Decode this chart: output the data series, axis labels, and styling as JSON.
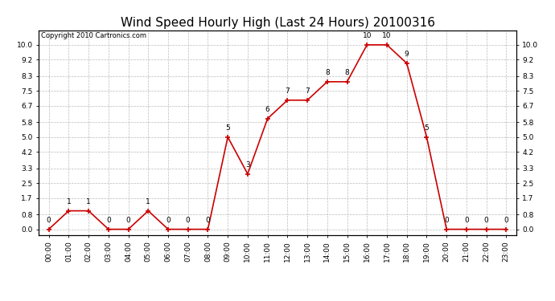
{
  "title": "Wind Speed Hourly High (Last 24 Hours) 20100316",
  "copyright": "Copyright 2010 Cartronics.com",
  "hours": [
    "00:00",
    "01:00",
    "02:00",
    "03:00",
    "04:00",
    "05:00",
    "06:00",
    "07:00",
    "08:00",
    "09:00",
    "10:00",
    "11:00",
    "12:00",
    "13:00",
    "14:00",
    "15:00",
    "16:00",
    "17:00",
    "18:00",
    "19:00",
    "20:00",
    "21:00",
    "22:00",
    "23:00"
  ],
  "values": [
    0,
    1,
    1,
    0,
    0,
    1,
    0,
    0,
    0,
    5,
    3,
    6,
    7,
    7,
    8,
    8,
    10,
    10,
    9,
    5,
    0,
    0,
    0,
    0
  ],
  "line_color": "#cc0000",
  "marker_color": "#cc0000",
  "bg_color": "#ffffff",
  "grid_color": "#bbbbbb",
  "yticks_left": [
    0.0,
    0.8,
    1.7,
    2.5,
    3.3,
    4.2,
    5.0,
    5.8,
    6.7,
    7.5,
    8.3,
    9.2,
    10.0
  ],
  "ylim": [
    -0.3,
    10.8
  ],
  "title_fontsize": 11,
  "label_fontsize": 6.5,
  "annot_fontsize": 6.5,
  "copyright_fontsize": 6.0
}
